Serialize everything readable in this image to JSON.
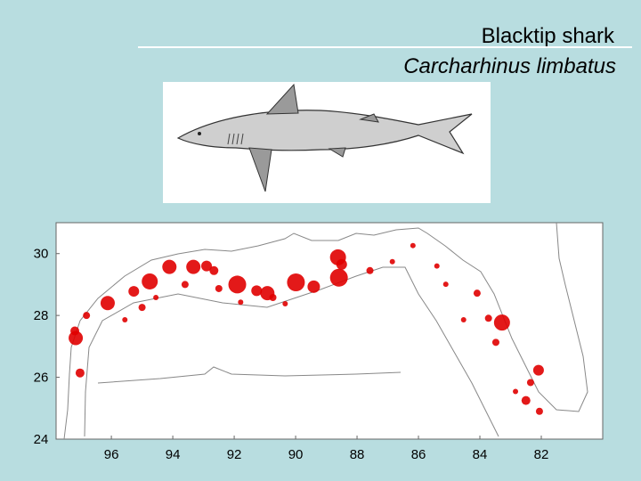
{
  "chart_data": {
    "type": "scatter",
    "title": "Blacktip shark",
    "subtitle": "Carcharhinus limbatus",
    "color": "#e00000",
    "xlim": [
      97.8,
      80
    ],
    "ylim": [
      24,
      31
    ],
    "xticks": [
      96,
      94,
      92,
      90,
      88,
      86,
      84,
      82
    ],
    "yticks": [
      30,
      28,
      26,
      24
    ],
    "x": [
      97.16,
      97.19,
      97.02,
      96.81,
      96.12,
      95.27,
      94.75,
      94.11,
      93.33,
      92.9,
      92.66,
      91.9,
      91.27,
      90.92,
      89.99,
      89.41,
      88.62,
      88.59,
      88.5,
      95.0,
      93.6,
      92.5,
      90.74,
      87.58,
      86.18,
      85.4,
      84.09,
      83.28,
      83.72,
      83.48,
      82.09,
      82.35,
      82.5,
      82.06,
      82.84,
      84.53,
      85.11,
      86.85,
      95.56,
      94.55,
      91.79,
      90.34
    ],
    "values": [
      27.27,
      27.5,
      26.14,
      28.0,
      28.4,
      28.78,
      29.1,
      29.57,
      29.57,
      29.6,
      29.45,
      29.0,
      28.8,
      28.72,
      29.07,
      28.93,
      29.88,
      29.22,
      29.65,
      28.26,
      29.0,
      28.87,
      28.58,
      29.45,
      30.26,
      29.6,
      28.72,
      27.77,
      27.91,
      27.13,
      26.23,
      25.83,
      25.25,
      24.9,
      25.54,
      27.86,
      29.01,
      29.74,
      27.86,
      28.58,
      28.43,
      28.38
    ],
    "sizes": [
      8,
      5,
      5,
      4,
      8,
      6,
      9,
      8,
      8,
      6,
      5,
      10,
      6,
      8,
      10,
      7,
      9,
      10,
      6,
      4,
      4,
      4,
      4,
      4,
      3,
      3,
      4,
      9,
      4,
      4,
      6,
      4,
      5,
      4,
      3,
      3,
      3,
      3,
      3,
      3,
      3,
      3
    ]
  }
}
